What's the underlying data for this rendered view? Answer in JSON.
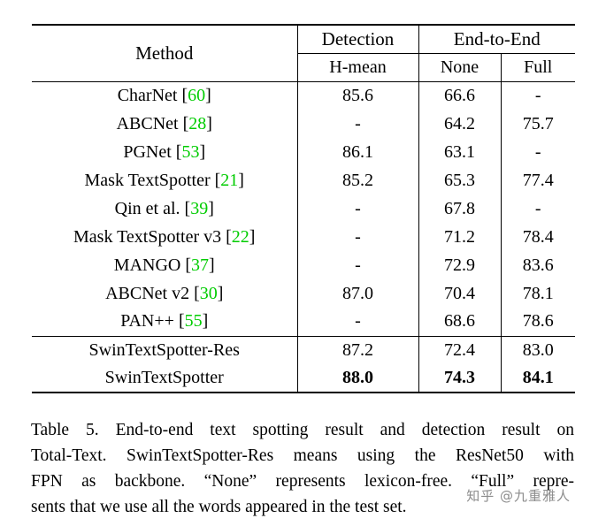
{
  "colors": {
    "citation": "#00cc00",
    "watermark": "#8c8c8c"
  },
  "table": {
    "header": {
      "method": "Method",
      "detection": "Detection",
      "end_to_end": "End-to-End",
      "h_mean": "H-mean",
      "none": "None",
      "full": "Full"
    },
    "rows": [
      {
        "method": "CharNet",
        "cite": "60",
        "h_mean": "85.6",
        "none": "66.6",
        "full": "-",
        "bold": false,
        "separator_above": false
      },
      {
        "method": "ABCNet",
        "cite": "28",
        "h_mean": "-",
        "none": "64.2",
        "full": "75.7",
        "bold": false,
        "separator_above": false
      },
      {
        "method": "PGNet",
        "cite": "53",
        "h_mean": "86.1",
        "none": "63.1",
        "full": "-",
        "bold": false,
        "separator_above": false
      },
      {
        "method": "Mask TextSpotter",
        "cite": "21",
        "h_mean": "85.2",
        "none": "65.3",
        "full": "77.4",
        "bold": false,
        "separator_above": false
      },
      {
        "method": "Qin et al.",
        "cite": "39",
        "h_mean": "-",
        "none": "67.8",
        "full": "-",
        "bold": false,
        "separator_above": false
      },
      {
        "method": "Mask TextSpotter v3",
        "cite": "22",
        "h_mean": "-",
        "none": "71.2",
        "full": "78.4",
        "bold": false,
        "separator_above": false
      },
      {
        "method": "MANGO",
        "cite": "37",
        "h_mean": "-",
        "none": "72.9",
        "full": "83.6",
        "bold": false,
        "separator_above": false
      },
      {
        "method": "ABCNet v2",
        "cite": "30",
        "h_mean": "87.0",
        "none": "70.4",
        "full": "78.1",
        "bold": false,
        "separator_above": false
      },
      {
        "method": "PAN++",
        "cite": "55",
        "h_mean": "-",
        "none": "68.6",
        "full": "78.6",
        "bold": false,
        "separator_above": false
      },
      {
        "method": "SwinTextSpotter-Res",
        "cite": null,
        "h_mean": "87.2",
        "none": "72.4",
        "full": "83.0",
        "bold": false,
        "separator_above": true
      },
      {
        "method": "SwinTextSpotter",
        "cite": null,
        "h_mean": "88.0",
        "none": "74.3",
        "full": "84.1",
        "bold": true,
        "separator_above": false
      }
    ]
  },
  "caption": {
    "lines": [
      "Table 5.  End-to-end text spotting result and detection result on",
      "Total-Text.  SwinTextSpotter-Res means using the ResNet50 with",
      "FPN as backbone.  “None” represents lexicon-free.  “Full” repre-",
      "sents that we use all the words appeared in the test set."
    ]
  },
  "watermark": {
    "text": "知乎 @九重雅人"
  }
}
